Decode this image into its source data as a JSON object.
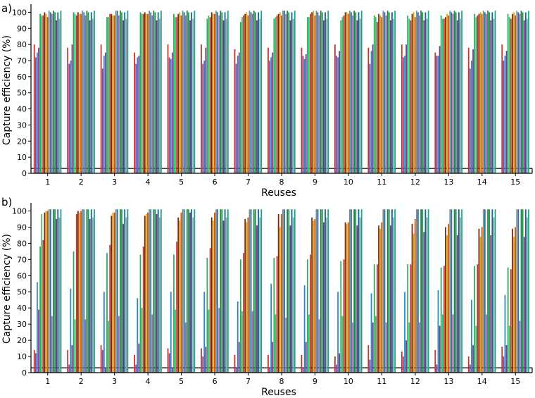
{
  "colors": [
    "#c0392b",
    "#8e44ad",
    "#2e86c1",
    "#7d3c98",
    "#27ae60",
    "#2ecc71",
    "#c0392b",
    "#7b241c",
    "#d4ac0d",
    "#d35400",
    "#7f8c8d",
    "#2874a6",
    "#a569bd",
    "#1e8449",
    "#229954",
    "#6c3483",
    "#1f618d",
    "#95a5a6",
    "#17a589"
  ],
  "chart_data": [
    {
      "type": "bar",
      "panel_label": "a)",
      "xlabel": "Reuses",
      "ylabel": "Capture efficiency (%)",
      "ylim": [
        0,
        105
      ],
      "yticks": [
        0,
        10,
        20,
        30,
        40,
        50,
        60,
        70,
        80,
        90,
        100
      ],
      "categories": [
        "1",
        "2",
        "3",
        "4",
        "5",
        "6",
        "7",
        "8",
        "9",
        "10",
        "11",
        "12",
        "13",
        "14",
        "15"
      ],
      "threshold": 3,
      "values": [
        [
          80,
          72,
          75,
          78,
          99,
          98,
          98,
          100,
          99,
          97,
          101,
          100,
          99,
          101,
          100,
          95,
          100,
          96,
          101
        ],
        [
          78,
          68,
          70,
          80,
          100,
          99,
          98,
          100,
          99,
          99,
          101,
          100,
          98,
          101,
          100,
          95,
          100,
          96,
          101
        ],
        [
          80,
          65,
          73,
          75,
          97,
          97,
          99,
          99,
          98,
          98,
          101,
          101,
          98,
          101,
          100,
          95,
          100,
          96,
          101
        ],
        [
          75,
          68,
          72,
          73,
          100,
          99,
          99,
          100,
          99,
          99,
          101,
          100,
          98,
          101,
          100,
          95,
          100,
          96,
          101
        ],
        [
          80,
          72,
          71,
          75,
          99,
          97,
          97,
          99,
          100,
          98,
          101,
          100,
          98,
          101,
          100,
          95,
          100,
          96,
          101
        ],
        [
          80,
          68,
          70,
          78,
          96,
          98,
          97,
          100,
          99,
          99,
          101,
          100,
          98,
          101,
          100,
          95,
          100,
          96,
          101
        ],
        [
          77,
          68,
          73,
          75,
          94,
          97,
          98,
          99,
          100,
          98,
          101,
          100,
          99,
          101,
          100,
          95,
          100,
          96,
          101
        ],
        [
          78,
          70,
          72,
          75,
          96,
          97,
          98,
          99,
          100,
          98,
          101,
          101,
          99,
          101,
          100,
          95,
          100,
          96,
          101
        ],
        [
          78,
          73,
          71,
          74,
          97,
          97,
          99,
          100,
          101,
          98,
          101,
          100,
          98,
          101,
          100,
          95,
          100,
          96,
          101
        ],
        [
          80,
          73,
          72,
          76,
          95,
          97,
          98,
          100,
          100,
          99,
          101,
          100,
          98,
          101,
          100,
          95,
          100,
          96,
          101
        ],
        [
          78,
          68,
          76,
          80,
          98,
          97,
          94,
          99,
          98,
          97,
          101,
          100,
          98,
          101,
          100,
          95,
          100,
          96,
          101
        ],
        [
          80,
          72,
          73,
          80,
          98,
          96,
          95,
          99,
          100,
          97,
          101,
          100,
          98,
          101,
          100,
          95,
          100,
          96,
          101
        ],
        [
          75,
          73,
          73,
          79,
          98,
          96,
          96,
          97,
          99,
          98,
          101,
          100,
          99,
          101,
          100,
          95,
          100,
          96,
          101
        ],
        [
          78,
          65,
          70,
          77,
          99,
          97,
          98,
          99,
          100,
          99,
          101,
          100,
          99,
          101,
          100,
          95,
          100,
          96,
          101
        ],
        [
          80,
          70,
          73,
          76,
          99,
          97,
          96,
          99,
          100,
          98,
          101,
          100,
          99,
          101,
          100,
          95,
          100,
          96,
          101
        ]
      ]
    },
    {
      "type": "bar",
      "panel_label": "b)",
      "xlabel": "Reuses",
      "ylabel": "Capture efficiency (%)",
      "ylim": [
        0,
        105
      ],
      "yticks": [
        0,
        10,
        20,
        30,
        40,
        50,
        60,
        70,
        80,
        90,
        100
      ],
      "categories": [
        "1",
        "2",
        "3",
        "4",
        "5",
        "6",
        "7",
        "8",
        "9",
        "10",
        "11",
        "12",
        "13",
        "14",
        "15"
      ],
      "threshold": 3,
      "values": [
        [
          14,
          12,
          56,
          39,
          78,
          98,
          82,
          99,
          100,
          100,
          101,
          101,
          35,
          101,
          101,
          95,
          101,
          96,
          101
        ],
        [
          14,
          5,
          52,
          17,
          75,
          33,
          98,
          100,
          99,
          100,
          101,
          101,
          33,
          101,
          101,
          95,
          101,
          96,
          101
        ],
        [
          17,
          14,
          50,
          3,
          74,
          32,
          79,
          97,
          99,
          99,
          101,
          101,
          35,
          101,
          101,
          92,
          101,
          96,
          101
        ],
        [
          11,
          5,
          46,
          18,
          73,
          40,
          78,
          97,
          98,
          99,
          101,
          101,
          36,
          101,
          101,
          98,
          101,
          96,
          101
        ],
        [
          15,
          12,
          50,
          3,
          73,
          39,
          81,
          96,
          94,
          99,
          101,
          101,
          31,
          101,
          101,
          99,
          101,
          96,
          101
        ],
        [
          15,
          10,
          50,
          16,
          71,
          39,
          77,
          96,
          94,
          99,
          101,
          101,
          40,
          101,
          101,
          94,
          101,
          96,
          101
        ],
        [
          11,
          3,
          44,
          19,
          70,
          38,
          74,
          95,
          93,
          96,
          101,
          101,
          38,
          101,
          101,
          91,
          101,
          96,
          101
        ],
        [
          11,
          3,
          55,
          19,
          71,
          36,
          72,
          98,
          90,
          98,
          101,
          101,
          34,
          101,
          101,
          91,
          101,
          96,
          101
        ],
        [
          11,
          3,
          54,
          19,
          70,
          36,
          73,
          96,
          94,
          95,
          101,
          101,
          33,
          101,
          101,
          93,
          101,
          96,
          101
        ],
        [
          10,
          5,
          50,
          12,
          69,
          35,
          70,
          93,
          92,
          93,
          101,
          101,
          31,
          101,
          101,
          91,
          101,
          96,
          101
        ],
        [
          17,
          8,
          49,
          31,
          67,
          35,
          67,
          91,
          89,
          93,
          101,
          101,
          31,
          101,
          101,
          91,
          101,
          96,
          101
        ],
        [
          13,
          10,
          50,
          20,
          67,
          31,
          67,
          92,
          86,
          95,
          101,
          101,
          31,
          101,
          101,
          87,
          101,
          96,
          101
        ],
        [
          14,
          5,
          51,
          29,
          65,
          36,
          66,
          90,
          85,
          92,
          101,
          101,
          36,
          101,
          101,
          85,
          101,
          96,
          101
        ],
        [
          10,
          5,
          45,
          17,
          66,
          29,
          67,
          89,
          84,
          90,
          101,
          101,
          36,
          101,
          101,
          85,
          101,
          96,
          101
        ],
        [
          16,
          10,
          48,
          17,
          65,
          29,
          64,
          89,
          84,
          90,
          101,
          101,
          32,
          101,
          101,
          84,
          101,
          96,
          101
        ]
      ]
    }
  ]
}
